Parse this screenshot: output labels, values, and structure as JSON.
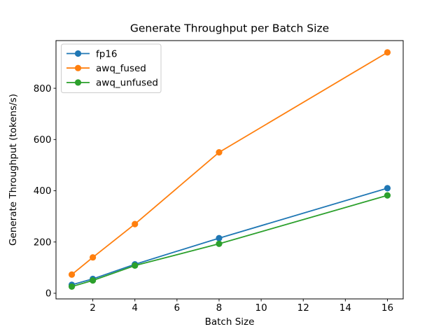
{
  "chart_data": {
    "type": "line",
    "title": "Generate Throughput per Batch Size",
    "xlabel": "Batch Size",
    "ylabel": "Generate Throughput (tokens/s)",
    "x": [
      1,
      2,
      4,
      8,
      16
    ],
    "series": [
      {
        "name": "fp16",
        "color": "#1f77b4",
        "values": [
          33,
          56,
          113,
          215,
          410
        ]
      },
      {
        "name": "awq_fused",
        "color": "#ff7f0e",
        "values": [
          73,
          140,
          270,
          550,
          940
        ]
      },
      {
        "name": "awq_unfused",
        "color": "#2ca02c",
        "values": [
          26,
          50,
          108,
          193,
          382
        ]
      }
    ],
    "xticks": [
      2,
      4,
      6,
      8,
      10,
      12,
      14,
      16
    ],
    "yticks": [
      0,
      200,
      400,
      600,
      800
    ],
    "xlim": [
      0.25,
      16.75
    ],
    "ylim": [
      -22,
      986
    ],
    "grid": false,
    "marker": "circle",
    "legend": {
      "position": "upper left"
    },
    "spine_color": "#000000",
    "legend_border_color": "#cccccc"
  }
}
